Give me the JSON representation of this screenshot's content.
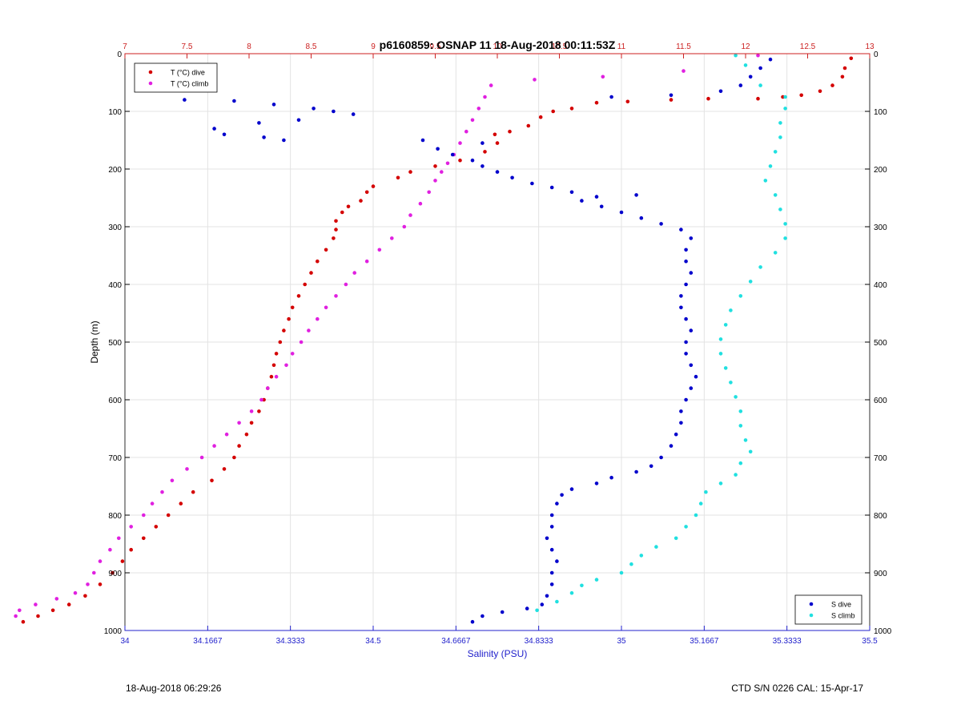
{
  "chart_data": {
    "type": "scatter",
    "title": "p6160859: OSNAP 11 18-Aug-2018 00:11:53Z",
    "ylabel": "Depth (m)",
    "xlabel": "Salinity (PSU)",
    "ylim": [
      1000,
      0
    ],
    "yticks": [
      0,
      100,
      200,
      300,
      400,
      500,
      600,
      700,
      800,
      900,
      1000
    ],
    "x_salinity_lim": [
      34,
      35.5
    ],
    "x_salinity_ticks": [
      "34",
      "34.1667",
      "34.3333",
      "34.5",
      "34.6667",
      "34.8333",
      "35",
      "35.1667",
      "35.3333",
      "35.5"
    ],
    "x_temp_lim": [
      7,
      13
    ],
    "x_temp_ticks": [
      "7",
      "7.5",
      "8",
      "8.5",
      "9",
      "9.5",
      "10",
      "10.5",
      "11",
      "11.5",
      "12",
      "12.5",
      "13"
    ],
    "grid": true,
    "legends": {
      "temperature": {
        "placement": "top-left"
      },
      "salinity": {
        "placement": "bottom-right"
      }
    },
    "series": [
      {
        "name": "T (°C) dive",
        "axis": "temperature",
        "color": "#d40000",
        "points": [
          [
            12.85,
            8
          ],
          [
            12.8,
            25
          ],
          [
            12.78,
            40
          ],
          [
            12.7,
            55
          ],
          [
            12.6,
            65
          ],
          [
            12.45,
            72
          ],
          [
            12.3,
            75
          ],
          [
            12.1,
            78
          ],
          [
            11.7,
            78
          ],
          [
            11.4,
            80
          ],
          [
            11.05,
            83
          ],
          [
            10.8,
            85
          ],
          [
            10.6,
            95
          ],
          [
            10.45,
            100
          ],
          [
            10.35,
            110
          ],
          [
            10.25,
            125
          ],
          [
            10.1,
            135
          ],
          [
            9.98,
            140
          ],
          [
            10.0,
            155
          ],
          [
            9.9,
            170
          ],
          [
            9.7,
            185
          ],
          [
            9.5,
            195
          ],
          [
            9.3,
            205
          ],
          [
            9.2,
            215
          ],
          [
            9.0,
            230
          ],
          [
            8.95,
            240
          ],
          [
            8.9,
            255
          ],
          [
            8.8,
            265
          ],
          [
            8.75,
            275
          ],
          [
            8.7,
            290
          ],
          [
            8.7,
            305
          ],
          [
            8.68,
            320
          ],
          [
            8.62,
            340
          ],
          [
            8.55,
            360
          ],
          [
            8.5,
            380
          ],
          [
            8.45,
            400
          ],
          [
            8.4,
            420
          ],
          [
            8.35,
            440
          ],
          [
            8.32,
            460
          ],
          [
            8.28,
            480
          ],
          [
            8.25,
            500
          ],
          [
            8.22,
            520
          ],
          [
            8.2,
            540
          ],
          [
            8.18,
            560
          ],
          [
            8.15,
            580
          ],
          [
            8.12,
            600
          ],
          [
            8.08,
            620
          ],
          [
            8.02,
            640
          ],
          [
            7.98,
            660
          ],
          [
            7.92,
            680
          ],
          [
            7.88,
            700
          ],
          [
            7.8,
            720
          ],
          [
            7.7,
            740
          ],
          [
            7.55,
            760
          ],
          [
            7.45,
            780
          ],
          [
            7.35,
            800
          ],
          [
            7.25,
            820
          ],
          [
            7.15,
            840
          ],
          [
            7.05,
            860
          ],
          [
            6.98,
            880
          ],
          [
            6.9,
            900
          ],
          [
            6.8,
            920
          ],
          [
            6.68,
            940
          ],
          [
            6.55,
            955
          ],
          [
            6.42,
            965
          ],
          [
            6.3,
            975
          ],
          [
            6.18,
            985
          ]
        ]
      },
      {
        "name": "T (°C) climb",
        "axis": "temperature",
        "color": "#e020e0",
        "points": [
          [
            12.1,
            3
          ],
          [
            11.5,
            30
          ],
          [
            10.85,
            40
          ],
          [
            10.3,
            45
          ],
          [
            9.95,
            55
          ],
          [
            9.9,
            75
          ],
          [
            9.85,
            95
          ],
          [
            9.8,
            115
          ],
          [
            9.75,
            135
          ],
          [
            9.7,
            155
          ],
          [
            9.65,
            175
          ],
          [
            9.6,
            190
          ],
          [
            9.55,
            205
          ],
          [
            9.5,
            220
          ],
          [
            9.45,
            240
          ],
          [
            9.38,
            260
          ],
          [
            9.3,
            280
          ],
          [
            9.25,
            300
          ],
          [
            9.15,
            320
          ],
          [
            9.05,
            340
          ],
          [
            8.95,
            360
          ],
          [
            8.85,
            380
          ],
          [
            8.78,
            400
          ],
          [
            8.7,
            420
          ],
          [
            8.62,
            440
          ],
          [
            8.55,
            460
          ],
          [
            8.48,
            480
          ],
          [
            8.42,
            500
          ],
          [
            8.35,
            520
          ],
          [
            8.3,
            540
          ],
          [
            8.22,
            560
          ],
          [
            8.15,
            580
          ],
          [
            8.1,
            600
          ],
          [
            8.02,
            620
          ],
          [
            7.92,
            640
          ],
          [
            7.82,
            660
          ],
          [
            7.72,
            680
          ],
          [
            7.62,
            700
          ],
          [
            7.5,
            720
          ],
          [
            7.38,
            740
          ],
          [
            7.3,
            760
          ],
          [
            7.22,
            780
          ],
          [
            7.15,
            800
          ],
          [
            7.05,
            820
          ],
          [
            6.95,
            840
          ],
          [
            6.88,
            860
          ],
          [
            6.8,
            880
          ],
          [
            6.75,
            900
          ],
          [
            6.7,
            920
          ],
          [
            6.6,
            935
          ],
          [
            6.45,
            945
          ],
          [
            6.28,
            955
          ],
          [
            6.15,
            965
          ],
          [
            6.12,
            975
          ]
        ]
      },
      {
        "name": "S dive",
        "axis": "salinity",
        "color": "#0000cc",
        "points": [
          [
            35.3,
            10
          ],
          [
            35.28,
            25
          ],
          [
            35.26,
            40
          ],
          [
            35.24,
            55
          ],
          [
            35.2,
            65
          ],
          [
            34.98,
            75
          ],
          [
            35.1,
            72
          ],
          [
            34.12,
            80
          ],
          [
            34.22,
            82
          ],
          [
            34.3,
            88
          ],
          [
            34.38,
            95
          ],
          [
            34.42,
            100
          ],
          [
            34.46,
            105
          ],
          [
            34.35,
            115
          ],
          [
            34.27,
            120
          ],
          [
            34.18,
            130
          ],
          [
            34.2,
            140
          ],
          [
            34.28,
            145
          ],
          [
            34.32,
            150
          ],
          [
            34.6,
            150
          ],
          [
            34.72,
            155
          ],
          [
            34.63,
            165
          ],
          [
            34.66,
            175
          ],
          [
            34.7,
            185
          ],
          [
            34.72,
            195
          ],
          [
            34.75,
            205
          ],
          [
            34.78,
            215
          ],
          [
            34.82,
            225
          ],
          [
            34.86,
            232
          ],
          [
            34.9,
            240
          ],
          [
            34.95,
            248
          ],
          [
            35.03,
            245
          ],
          [
            34.92,
            255
          ],
          [
            34.96,
            265
          ],
          [
            35.0,
            275
          ],
          [
            35.04,
            285
          ],
          [
            35.08,
            295
          ],
          [
            35.12,
            305
          ],
          [
            35.14,
            320
          ],
          [
            35.13,
            340
          ],
          [
            35.13,
            360
          ],
          [
            35.14,
            380
          ],
          [
            35.13,
            400
          ],
          [
            35.12,
            420
          ],
          [
            35.12,
            440
          ],
          [
            35.13,
            460
          ],
          [
            35.14,
            480
          ],
          [
            35.13,
            500
          ],
          [
            35.13,
            520
          ],
          [
            35.14,
            540
          ],
          [
            35.15,
            560
          ],
          [
            35.14,
            580
          ],
          [
            35.13,
            600
          ],
          [
            35.12,
            620
          ],
          [
            35.12,
            640
          ],
          [
            35.11,
            660
          ],
          [
            35.1,
            680
          ],
          [
            35.08,
            700
          ],
          [
            35.06,
            715
          ],
          [
            35.03,
            725
          ],
          [
            34.98,
            735
          ],
          [
            34.95,
            745
          ],
          [
            34.9,
            755
          ],
          [
            34.88,
            765
          ],
          [
            34.87,
            780
          ],
          [
            34.86,
            800
          ],
          [
            34.86,
            820
          ],
          [
            34.85,
            840
          ],
          [
            34.86,
            860
          ],
          [
            34.87,
            880
          ],
          [
            34.86,
            900
          ],
          [
            34.86,
            920
          ],
          [
            34.85,
            940
          ],
          [
            34.84,
            955
          ],
          [
            34.81,
            962
          ],
          [
            34.76,
            968
          ],
          [
            34.72,
            975
          ],
          [
            34.7,
            985
          ]
        ]
      },
      {
        "name": "S climb",
        "axis": "salinity",
        "color": "#20e0e0",
        "points": [
          [
            35.23,
            3
          ],
          [
            35.25,
            20
          ],
          [
            35.28,
            55
          ],
          [
            35.33,
            75
          ],
          [
            35.33,
            95
          ],
          [
            35.32,
            120
          ],
          [
            35.32,
            145
          ],
          [
            35.31,
            170
          ],
          [
            35.3,
            195
          ],
          [
            35.29,
            220
          ],
          [
            35.31,
            245
          ],
          [
            35.32,
            270
          ],
          [
            35.33,
            295
          ],
          [
            35.33,
            320
          ],
          [
            35.31,
            345
          ],
          [
            35.28,
            370
          ],
          [
            35.26,
            395
          ],
          [
            35.24,
            420
          ],
          [
            35.22,
            445
          ],
          [
            35.21,
            470
          ],
          [
            35.2,
            495
          ],
          [
            35.2,
            520
          ],
          [
            35.21,
            545
          ],
          [
            35.22,
            570
          ],
          [
            35.23,
            595
          ],
          [
            35.24,
            620
          ],
          [
            35.24,
            645
          ],
          [
            35.25,
            670
          ],
          [
            35.26,
            690
          ],
          [
            35.24,
            710
          ],
          [
            35.23,
            730
          ],
          [
            35.2,
            745
          ],
          [
            35.17,
            760
          ],
          [
            35.16,
            780
          ],
          [
            35.15,
            800
          ],
          [
            35.13,
            820
          ],
          [
            35.11,
            840
          ],
          [
            35.07,
            855
          ],
          [
            35.04,
            870
          ],
          [
            35.02,
            885
          ],
          [
            35.0,
            900
          ],
          [
            34.95,
            912
          ],
          [
            34.92,
            922
          ],
          [
            34.9,
            935
          ],
          [
            34.87,
            950
          ],
          [
            34.83,
            965
          ]
        ]
      }
    ]
  },
  "footer": {
    "left": "18-Aug-2018 06:29:26",
    "right": "CTD S/N 0226  CAL: 15-Apr-17"
  }
}
